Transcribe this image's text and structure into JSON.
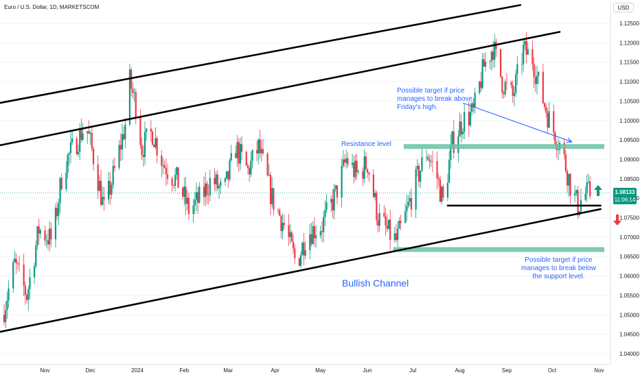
{
  "header": {
    "symbol_title": "Euro / U.S. Dollar, 1D, MARKETSCOM",
    "currency": "USD"
  },
  "price_tag": {
    "price": "1.08133",
    "countdown": "11:06:14",
    "color": "#089981"
  },
  "annotations": {
    "resistance": "Resistance level",
    "target_up": [
      "Possible target if price",
      "manages to break above",
      "Friday's high."
    ],
    "target_down": [
      "Possible target if price",
      "manages to break below",
      "the support level."
    ],
    "channel": "Bullish Channel"
  },
  "colors": {
    "up_candle": "#089981",
    "down_candle": "#f23645",
    "zone": "#66c2a5",
    "annotation": "#2962ff",
    "arrow_up": "#089981",
    "arrow_down": "#f23645"
  },
  "chart_data": {
    "type": "candlestick",
    "instrument": "Euro / U.S. Dollar",
    "timeframe": "1D",
    "y_ticks": [
      1.04,
      1.045,
      1.05,
      1.055,
      1.06,
      1.065,
      1.07,
      1.075,
      1.08,
      1.085,
      1.09,
      1.095,
      1.1,
      1.105,
      1.11,
      1.115,
      1.12,
      1.125
    ],
    "y_tick_labels": [
      "1.04000",
      "1.04500",
      "1.05000",
      "1.05500",
      "1.06000",
      "1.06500",
      "1.07000",
      "1.07500",
      "1.08000",
      "1.08500",
      "1.09000",
      "1.09500",
      "1.10000",
      "1.10500",
      "1.11000",
      "1.11500",
      "1.12000",
      "1.12500"
    ],
    "ylim": [
      1.0375,
      1.1285
    ],
    "x_range_days": [
      0,
      377
    ],
    "x_ticks": [
      {
        "label": "Nov",
        "day": 0
      },
      {
        "label": "Dec",
        "day": 30
      },
      {
        "label": "2024",
        "day": 61
      },
      {
        "label": "Feb",
        "day": 92
      },
      {
        "label": "Mar",
        "day": 121
      },
      {
        "label": "Apr",
        "day": 152
      },
      {
        "label": "May",
        "day": 182
      },
      {
        "label": "Jun",
        "day": 213
      },
      {
        "label": "Jul",
        "day": 243
      },
      {
        "label": "Aug",
        "day": 274
      },
      {
        "label": "Sep",
        "day": 305
      },
      {
        "label": "Oct",
        "day": 335
      },
      {
        "label": "Nov",
        "day": 366
      }
    ],
    "keypoints": [
      {
        "day": -28,
        "close": 1.05
      },
      {
        "day": -20,
        "close": 1.063
      },
      {
        "day": -12,
        "close": 1.055
      },
      {
        "day": -4,
        "close": 1.072
      },
      {
        "day": 5,
        "close": 1.069
      },
      {
        "day": 12,
        "close": 1.088
      },
      {
        "day": 20,
        "close": 1.094
      },
      {
        "day": 27,
        "close": 1.099
      },
      {
        "day": 33,
        "close": 1.089
      },
      {
        "day": 39,
        "close": 1.077
      },
      {
        "day": 46,
        "close": 1.087
      },
      {
        "day": 53,
        "close": 1.099
      },
      {
        "day": 56,
        "close": 1.11
      },
      {
        "day": 60,
        "close": 1.104
      },
      {
        "day": 64,
        "close": 1.093
      },
      {
        "day": 71,
        "close": 1.097
      },
      {
        "day": 78,
        "close": 1.089
      },
      {
        "day": 88,
        "close": 1.084
      },
      {
        "day": 95,
        "close": 1.077
      },
      {
        "day": 103,
        "close": 1.08
      },
      {
        "day": 110,
        "close": 1.085
      },
      {
        "day": 118,
        "close": 1.081
      },
      {
        "day": 126,
        "close": 1.093
      },
      {
        "day": 134,
        "close": 1.087
      },
      {
        "day": 141,
        "close": 1.093
      },
      {
        "day": 150,
        "close": 1.08
      },
      {
        "day": 158,
        "close": 1.073
      },
      {
        "day": 166,
        "close": 1.063
      },
      {
        "day": 173,
        "close": 1.071
      },
      {
        "day": 183,
        "close": 1.073
      },
      {
        "day": 192,
        "close": 1.081
      },
      {
        "day": 199,
        "close": 1.09
      },
      {
        "day": 206,
        "close": 1.086
      },
      {
        "day": 213,
        "close": 1.089
      },
      {
        "day": 220,
        "close": 1.075
      },
      {
        "day": 227,
        "close": 1.071
      },
      {
        "day": 232,
        "close": 1.069
      },
      {
        "day": 237,
        "close": 1.074
      },
      {
        "day": 244,
        "close": 1.083
      },
      {
        "day": 252,
        "close": 1.092
      },
      {
        "day": 258,
        "close": 1.087
      },
      {
        "day": 263,
        "close": 1.079
      },
      {
        "day": 269,
        "close": 1.094
      },
      {
        "day": 276,
        "close": 1.1
      },
      {
        "day": 283,
        "close": 1.102
      },
      {
        "day": 290,
        "close": 1.114
      },
      {
        "day": 296,
        "close": 1.119
      },
      {
        "day": 302,
        "close": 1.11
      },
      {
        "day": 309,
        "close": 1.106
      },
      {
        "day": 316,
        "close": 1.118
      },
      {
        "day": 322,
        "close": 1.116
      },
      {
        "day": 327,
        "close": 1.108
      },
      {
        "day": 334,
        "close": 1.099
      },
      {
        "day": 341,
        "close": 1.093
      },
      {
        "day": 348,
        "close": 1.082
      },
      {
        "day": 352,
        "close": 1.078
      },
      {
        "day": 356,
        "close": 1.081
      },
      {
        "day": 360,
        "close": 1.0813
      }
    ],
    "trendlines": [
      {
        "name": "channel-upper-outer",
        "from": {
          "day": -30,
          "price": 1.1045
        },
        "to": {
          "day": 314,
          "price": 1.1297
        }
      },
      {
        "name": "channel-upper-inner",
        "from": {
          "day": -30,
          "price": 1.0936
        },
        "to": {
          "day": 340,
          "price": 1.1228
        }
      },
      {
        "name": "channel-lower",
        "from": {
          "day": -30,
          "price": 1.0456
        },
        "to": {
          "day": 367,
          "price": 1.0772
        }
      },
      {
        "name": "support-level",
        "from": {
          "day": 266,
          "price": 1.0781
        },
        "to": {
          "day": 367,
          "price": 1.0781
        }
      }
    ],
    "zones": [
      {
        "name": "resistance-zone",
        "from_day": 237,
        "to_day": 370,
        "price": 1.0933
      },
      {
        "name": "support-target-zone",
        "from_day": 230,
        "to_day": 370,
        "price": 1.0668
      }
    ],
    "arrows": [
      {
        "name": "projection-arrow",
        "from": {
          "day": 276,
          "price": 1.1045
        },
        "to": {
          "day": 348,
          "price": 1.0945
        }
      }
    ],
    "last_price": 1.08133
  }
}
